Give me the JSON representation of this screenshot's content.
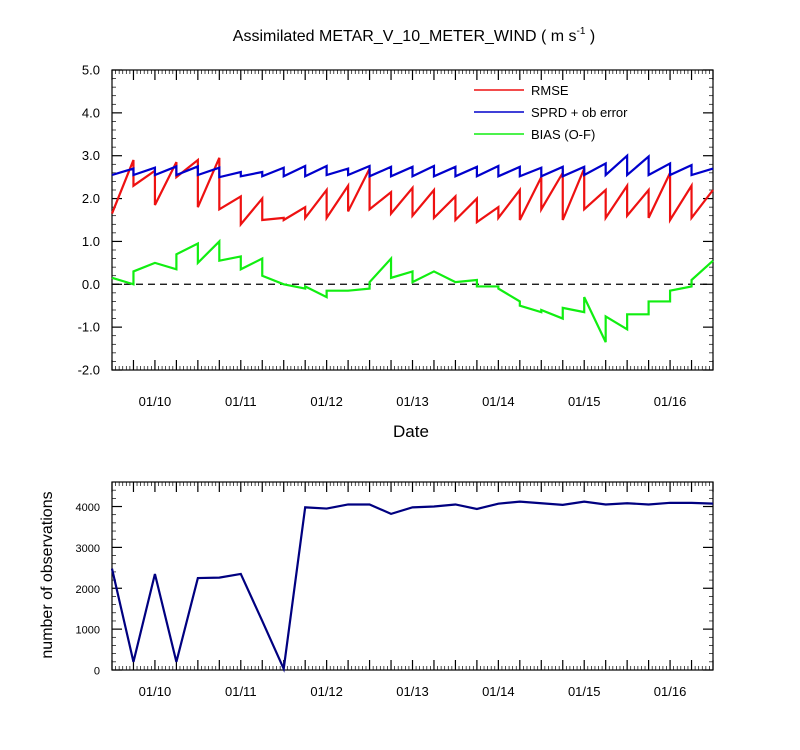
{
  "colors": {
    "rmse": "#ee1111",
    "spread": "#0000cc",
    "bias": "#11ee11",
    "zero_line": "#000000",
    "obs_line": "#000080"
  },
  "chart_data": [
    {
      "type": "line",
      "title_main": "Assimilated METAR_V_10_METER_WIND ( m s",
      "title_sup": "-1",
      "title_end": " )",
      "xlabel": "Date",
      "ylabel": "",
      "xlim": [
        0,
        168
      ],
      "ylim": [
        -2.0,
        5.0
      ],
      "yticks": [
        5.0,
        4.0,
        3.0,
        2.0,
        1.0,
        0.0,
        -1.0,
        -2.0
      ],
      "ytick_labels": [
        "5.0",
        "4.0",
        "3.0",
        "2.0",
        "1.0",
        "0.0",
        "-1.0",
        "-2.0"
      ],
      "xticks": [
        12,
        36,
        60,
        84,
        108,
        132,
        156
      ],
      "xtick_labels": [
        "01/10",
        "01/11",
        "01/12",
        "01/13",
        "01/14",
        "01/15",
        "01/16"
      ],
      "zero_line": 0,
      "legend_position": "top-right",
      "series": [
        {
          "name": "RMSE",
          "color_key": "rmse",
          "x": [
            0,
            6,
            6,
            12,
            12,
            18,
            18,
            24,
            24,
            30,
            30,
            36,
            36,
            42,
            42,
            48,
            48,
            54,
            54,
            60,
            60,
            66,
            66,
            72,
            72,
            78,
            78,
            84,
            84,
            90,
            90,
            96,
            96,
            102,
            102,
            108,
            108,
            114,
            114,
            120,
            120,
            126,
            126,
            132,
            132,
            138,
            138,
            144,
            144,
            150,
            150,
            156,
            156,
            162,
            162,
            168
          ],
          "y": [
            1.65,
            2.9,
            2.3,
            2.65,
            1.85,
            2.85,
            2.5,
            2.9,
            1.8,
            2.95,
            1.75,
            2.05,
            1.4,
            2.0,
            1.5,
            1.55,
            1.5,
            1.8,
            1.55,
            2.2,
            1.55,
            2.3,
            1.7,
            2.7,
            1.75,
            2.15,
            1.65,
            2.25,
            1.6,
            2.2,
            1.55,
            2.05,
            1.5,
            2.0,
            1.45,
            1.8,
            1.55,
            2.2,
            1.5,
            2.5,
            1.75,
            2.6,
            1.5,
            2.7,
            1.75,
            2.2,
            1.55,
            2.3,
            1.6,
            2.2,
            1.55,
            2.6,
            1.5,
            2.3,
            1.55,
            2.2
          ]
        },
        {
          "name": "SPRD + ob error",
          "color_key": "spread",
          "x": [
            0,
            6,
            6,
            12,
            12,
            18,
            18,
            24,
            24,
            30,
            30,
            36,
            36,
            42,
            42,
            48,
            48,
            54,
            54,
            60,
            60,
            66,
            66,
            72,
            72,
            78,
            78,
            84,
            84,
            90,
            90,
            96,
            96,
            102,
            102,
            108,
            108,
            114,
            114,
            120,
            120,
            126,
            126,
            132,
            132,
            138,
            138,
            144,
            144,
            150,
            150,
            156,
            156,
            162,
            162,
            168
          ],
          "y": [
            2.55,
            2.7,
            2.55,
            2.72,
            2.55,
            2.75,
            2.55,
            2.75,
            2.55,
            2.72,
            2.5,
            2.62,
            2.52,
            2.62,
            2.52,
            2.72,
            2.52,
            2.76,
            2.52,
            2.76,
            2.55,
            2.7,
            2.55,
            2.76,
            2.52,
            2.74,
            2.52,
            2.74,
            2.52,
            2.76,
            2.52,
            2.74,
            2.52,
            2.74,
            2.52,
            2.76,
            2.52,
            2.74,
            2.52,
            2.72,
            2.52,
            2.74,
            2.52,
            2.74,
            2.55,
            2.82,
            2.55,
            3.0,
            2.55,
            2.98,
            2.55,
            2.82,
            2.55,
            2.78,
            2.55,
            2.7
          ]
        },
        {
          "name": "BIAS (O-F)",
          "color_key": "bias",
          "x": [
            0,
            6,
            6,
            12,
            18,
            18,
            24,
            24,
            30,
            30,
            36,
            36,
            42,
            42,
            48,
            54,
            54,
            60,
            60,
            66,
            72,
            72,
            78,
            78,
            84,
            84,
            90,
            96,
            102,
            102,
            108,
            108,
            114,
            114,
            120,
            120,
            126,
            126,
            132,
            132,
            138,
            138,
            144,
            144,
            150,
            150,
            156,
            156,
            162,
            162,
            168
          ],
          "y": [
            0.15,
            0.0,
            0.3,
            0.5,
            0.35,
            0.7,
            0.95,
            0.5,
            1.0,
            0.55,
            0.65,
            0.35,
            0.6,
            0.2,
            0.0,
            -0.1,
            -0.05,
            -0.3,
            -0.15,
            -0.15,
            -0.1,
            0.05,
            0.6,
            0.15,
            0.3,
            0.05,
            0.3,
            0.05,
            0.1,
            -0.05,
            -0.05,
            -0.1,
            -0.4,
            -0.5,
            -0.65,
            -0.6,
            -0.8,
            -0.55,
            -0.65,
            -0.3,
            -1.35,
            -0.75,
            -1.05,
            -0.7,
            -0.7,
            -0.4,
            -0.4,
            -0.15,
            -0.05,
            0.1,
            0.55
          ]
        }
      ]
    },
    {
      "type": "line",
      "title": "",
      "xlabel": "",
      "ylabel": "number of observations",
      "xlim": [
        0,
        168
      ],
      "ylim": [
        0,
        4600
      ],
      "yticks": [
        4000,
        3000,
        2000,
        1000,
        0
      ],
      "ytick_labels": [
        "4000",
        "3000",
        "2000",
        "1000",
        "0"
      ],
      "xticks": [
        12,
        36,
        60,
        84,
        108,
        132,
        156
      ],
      "xtick_labels": [
        "01/10",
        "01/11",
        "01/12",
        "01/13",
        "01/14",
        "01/15",
        "01/16"
      ],
      "series": [
        {
          "name": "number of observations",
          "color_key": "obs_line",
          "x": [
            0,
            6,
            12,
            18,
            24,
            30,
            36,
            42,
            48,
            54,
            60,
            66,
            72,
            78,
            84,
            90,
            96,
            102,
            108,
            114,
            120,
            126,
            132,
            138,
            144,
            150,
            156,
            162,
            168
          ],
          "y": [
            2480,
            200,
            2350,
            200,
            2250,
            2260,
            2350,
            1200,
            30,
            3980,
            3950,
            4050,
            4050,
            3820,
            3980,
            4000,
            4050,
            3940,
            4070,
            4120,
            4080,
            4040,
            4120,
            4050,
            4080,
            4050,
            4090,
            4090,
            4070
          ]
        }
      ]
    }
  ]
}
